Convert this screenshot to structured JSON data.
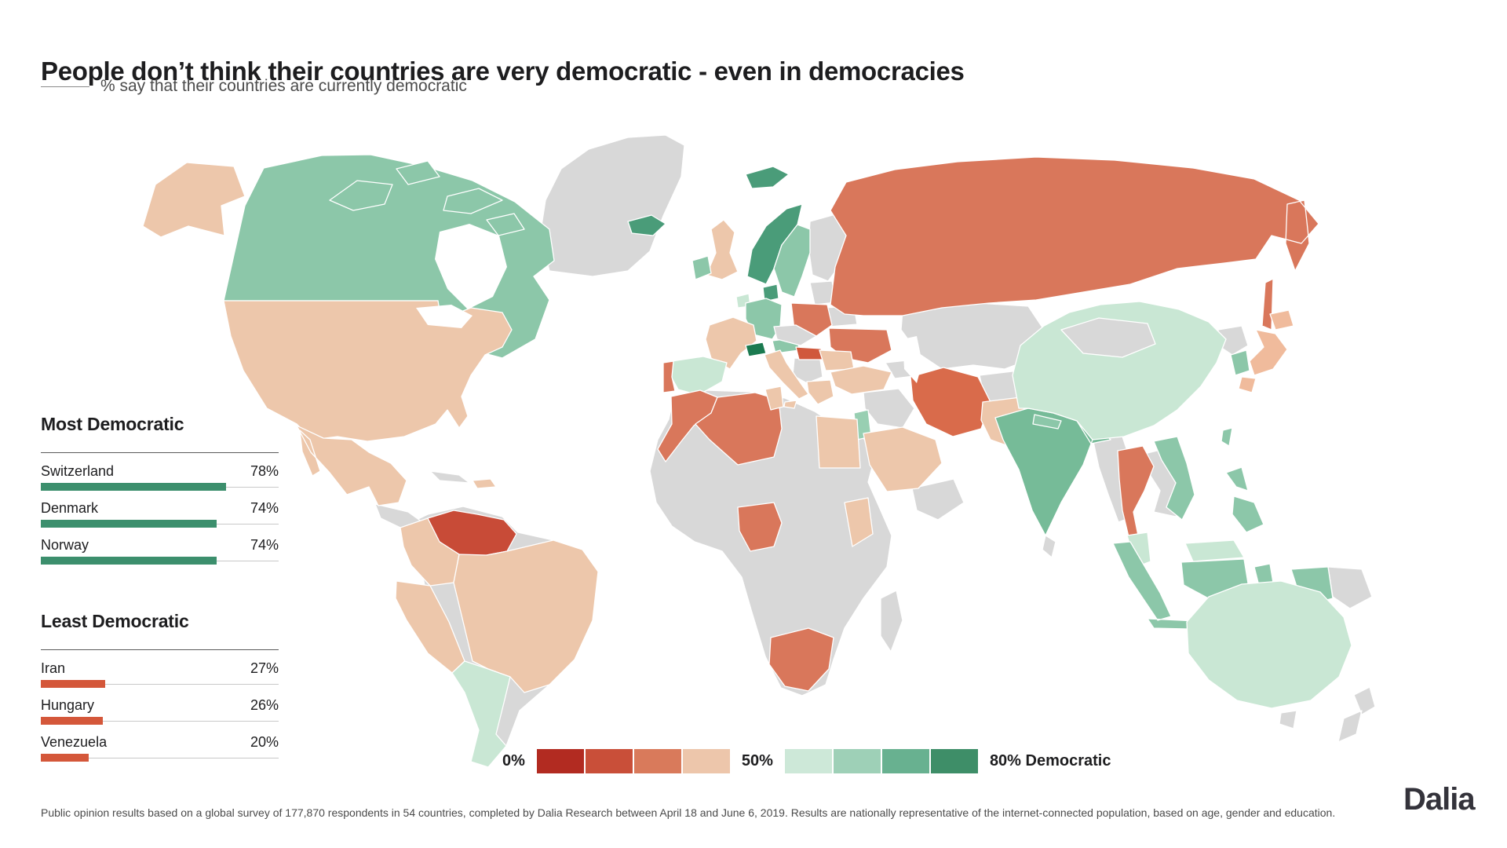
{
  "page": {
    "title": "People don’t think their countries are very democratic - even in democracies",
    "subtitle": "% say that their countries are currently democratic",
    "footnote": "Public opinion results based on a global survey of 177,870 respondents in 54 countries, completed by Dalia Research between April 18 and June 6, 2019. Results are nationally representative of the internet-connected population, based on age, gender and education.",
    "brand": "Dalia"
  },
  "legend": {
    "min_label": "0%",
    "mid_label": "50%",
    "max_label": "80% Democratic",
    "swatches": [
      "#b22b21",
      "#c94f39",
      "#d97a5b",
      "#edc6ab",
      "#cde8d8",
      "#9ed0b7",
      "#68b190",
      "#3e8e68"
    ]
  },
  "chart_data": {
    "type": "choropleth",
    "title": "People don’t think their countries are very democratic - even in democracies",
    "measure": "% say that their countries are currently democratic",
    "scale": {
      "domain_labels": [
        "0%",
        "50%",
        "80% Democratic"
      ],
      "colors": [
        "#b22b21",
        "#c94f39",
        "#d97a5b",
        "#edc6ab",
        "#cde8d8",
        "#9ed0b7",
        "#68b190",
        "#3e8e68"
      ],
      "no_data_color": "#d8d8d8"
    },
    "bars": {
      "most": {
        "heading": "Most Democratic",
        "color": "#3c8f6d",
        "rows": [
          {
            "label": "Switzerland",
            "value": 78,
            "value_label": "78%"
          },
          {
            "label": "Denmark",
            "value": 74,
            "value_label": "74%"
          },
          {
            "label": "Norway",
            "value": 74,
            "value_label": "74%"
          }
        ]
      },
      "least": {
        "heading": "Least Democratic",
        "color": "#d4573a",
        "rows": [
          {
            "label": "Iran",
            "value": 27,
            "value_label": "27%"
          },
          {
            "label": "Hungary",
            "value": 26,
            "value_label": "26%"
          },
          {
            "label": "Venezuela",
            "value": 20,
            "value_label": "20%"
          }
        ]
      }
    },
    "map_regions": [
      {
        "id": "greenland",
        "fill": "#d8d8d8"
      },
      {
        "id": "africa",
        "fill": "#d8d8d8"
      },
      {
        "id": "south-america",
        "fill": "#d8d8d8"
      },
      {
        "id": "central-america",
        "fill": "#d8d8d8"
      },
      {
        "id": "cuba",
        "fill": "#d8d8d8"
      },
      {
        "id": "finland",
        "fill": "#d8d8d8"
      },
      {
        "id": "baltics",
        "fill": "#d8d8d8"
      },
      {
        "id": "belarus",
        "fill": "#d8d8d8"
      },
      {
        "id": "balkans",
        "fill": "#d8d8d8"
      },
      {
        "id": "kazakhstan",
        "fill": "#d8d8d8"
      },
      {
        "id": "caucasus",
        "fill": "#d8d8d8"
      },
      {
        "id": "iraq-syria",
        "fill": "#d8d8d8"
      },
      {
        "id": "afghanistan",
        "fill": "#d8d8d8"
      },
      {
        "id": "yemen-oman",
        "fill": "#d8d8d8"
      },
      {
        "id": "myanmar",
        "fill": "#d8d8d8"
      },
      {
        "id": "laos-cambodia",
        "fill": "#d8d8d8"
      },
      {
        "id": "north-korea",
        "fill": "#d8d8d8"
      },
      {
        "id": "sri-lanka",
        "fill": "#d8d8d8"
      },
      {
        "id": "madagascar",
        "fill": "#d8d8d8"
      },
      {
        "id": "papua-new-guinea",
        "fill": "#d8d8d8"
      },
      {
        "id": "new-zealand",
        "fill": "#d8d8d8"
      },
      {
        "id": "tasmania",
        "fill": "#d8d8d8"
      },
      {
        "id": "alaska",
        "fill": "#edc7ab"
      },
      {
        "id": "canada",
        "fill": "#8cc7a9"
      },
      {
        "id": "canada-islands",
        "fill": "#8cc7a9"
      },
      {
        "id": "usa",
        "fill": "#edc7ab"
      },
      {
        "id": "mexico",
        "fill": "#edc7ab"
      },
      {
        "id": "hispaniola",
        "fill": "#edc7ab"
      },
      {
        "id": "venezuela",
        "fill": "#c84b37"
      },
      {
        "id": "colombia",
        "fill": "#edc7ab"
      },
      {
        "id": "peru-ecuador",
        "fill": "#edc7ab"
      },
      {
        "id": "brazil",
        "fill": "#edc7ab"
      },
      {
        "id": "chile-argentina",
        "fill": "#c9e7d4"
      },
      {
        "id": "iceland",
        "fill": "#4a9c79"
      },
      {
        "id": "svalbard",
        "fill": "#4a9c79"
      },
      {
        "id": "norway",
        "fill": "#4a9c79"
      },
      {
        "id": "sweden",
        "fill": "#8cc7a9"
      },
      {
        "id": "denmark",
        "fill": "#4a9c79"
      },
      {
        "id": "uk",
        "fill": "#edc7ab"
      },
      {
        "id": "ireland",
        "fill": "#8cc7a9"
      },
      {
        "id": "netherlands",
        "fill": "#c9e7d4"
      },
      {
        "id": "germany",
        "fill": "#8cc7a9"
      },
      {
        "id": "poland",
        "fill": "#d9775b"
      },
      {
        "id": "ukraine",
        "fill": "#d9775b"
      },
      {
        "id": "france",
        "fill": "#edc7ab"
      },
      {
        "id": "spain",
        "fill": "#c9e7d4"
      },
      {
        "id": "portugal",
        "fill": "#d9775b"
      },
      {
        "id": "switzerland",
        "fill": "#1b7a50"
      },
      {
        "id": "austria",
        "fill": "#8cc7a9"
      },
      {
        "id": "italy",
        "fill": "#edc7ab"
      },
      {
        "id": "hungary",
        "fill": "#d0583c"
      },
      {
        "id": "romania",
        "fill": "#edc7ab"
      },
      {
        "id": "greece",
        "fill": "#edc7ab"
      },
      {
        "id": "czech-slovakia",
        "fill": "#d8d8d8"
      },
      {
        "id": "russia",
        "fill": "#d9775b"
      },
      {
        "id": "turkey",
        "fill": "#edc7ab"
      },
      {
        "id": "israel-jordan",
        "fill": "#98cfb2"
      },
      {
        "id": "saudi-arabia",
        "fill": "#edc7ab"
      },
      {
        "id": "egypt",
        "fill": "#edc7ab"
      },
      {
        "id": "iran",
        "fill": "#d96b4b"
      },
      {
        "id": "pakistan",
        "fill": "#edc7ab"
      },
      {
        "id": "india",
        "fill": "#76bb98"
      },
      {
        "id": "nepal",
        "fill": "#8cc7a9"
      },
      {
        "id": "china",
        "fill": "#c9e7d4"
      },
      {
        "id": "mongolia",
        "fill": "#d8d8d8"
      },
      {
        "id": "thailand",
        "fill": "#d9775b"
      },
      {
        "id": "vietnam",
        "fill": "#8cc7a9"
      },
      {
        "id": "malaysia",
        "fill": "#c9e7d4"
      },
      {
        "id": "indonesia",
        "fill": "#8cc7a9"
      },
      {
        "id": "philippines",
        "fill": "#8cc7a9"
      },
      {
        "id": "taiwan",
        "fill": "#8cc7a9"
      },
      {
        "id": "south-korea",
        "fill": "#8cc7a9"
      },
      {
        "id": "japan",
        "fill": "#f0bb9c"
      },
      {
        "id": "morocco",
        "fill": "#d9775b"
      },
      {
        "id": "algeria",
        "fill": "#d9775b"
      },
      {
        "id": "tunisia",
        "fill": "#edc7ab"
      },
      {
        "id": "nigeria",
        "fill": "#d9775b"
      },
      {
        "id": "kenya",
        "fill": "#edc7ab"
      },
      {
        "id": "south-africa",
        "fill": "#d9775b"
      },
      {
        "id": "australia",
        "fill": "#c9e7d4"
      }
    ]
  }
}
